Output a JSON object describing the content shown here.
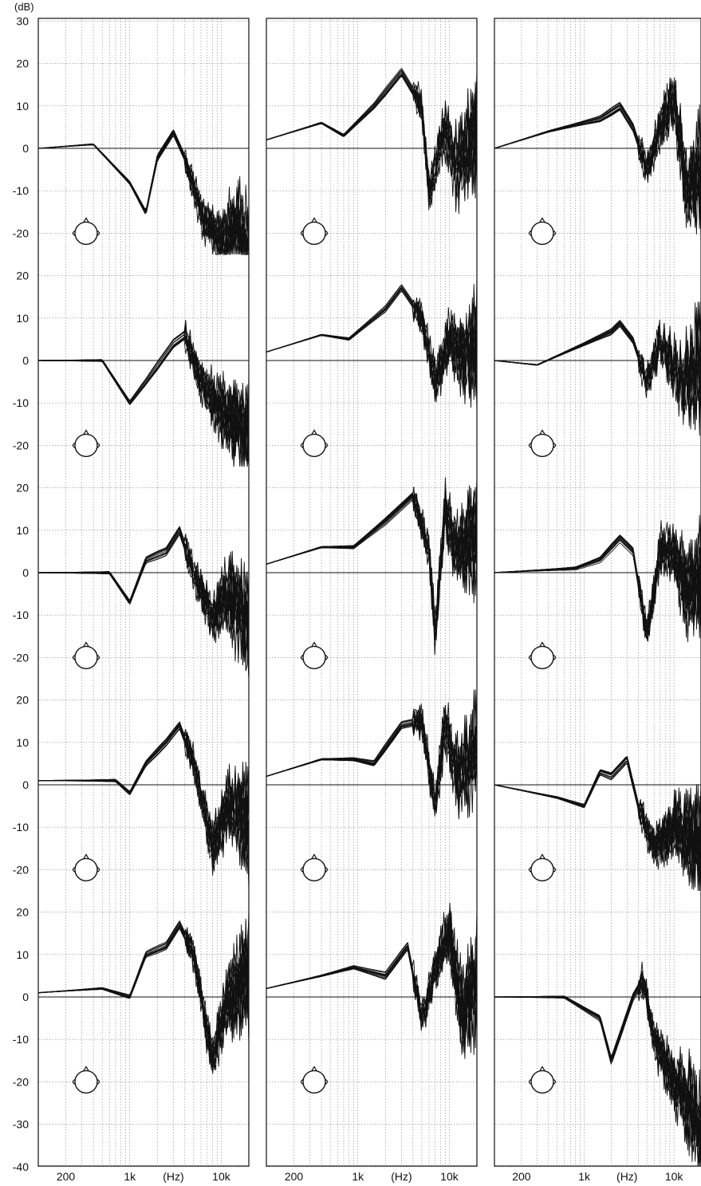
{
  "figure": {
    "unit_label": "(dB)",
    "x_axis_label": "(Hz)",
    "y_tick_labels": [
      [
        "30",
        "20",
        "10",
        "0",
        "-10",
        "-20"
      ],
      [
        "20",
        "10",
        "0",
        "-10",
        "-20"
      ],
      [
        "20",
        "10",
        "0",
        "-10",
        "-20"
      ],
      [
        "20",
        "10",
        "0",
        "-10",
        "-20"
      ],
      [
        "20",
        "10",
        "0",
        "-10",
        "-20",
        "-30",
        "-40"
      ]
    ],
    "x_tick_labels": [
      "200",
      "1k",
      "10k"
    ]
  },
  "chart_data": {
    "type": "line",
    "description_units": {
      "x": "Hz (log scale)",
      "y": "dB"
    },
    "x_range": [
      100,
      20000
    ],
    "y_ticks_per_row_step": 10,
    "x_ticks": [
      200,
      1000,
      10000
    ],
    "grid": true,
    "columns": 3,
    "rows": 5,
    "panels": [
      {
        "column": 1,
        "row": 1,
        "arrow": "from-right-front",
        "series": [
          [
            100,
            0
          ],
          [
            400,
            1
          ],
          [
            1000,
            -8
          ],
          [
            1500,
            -15
          ],
          [
            2000,
            -2
          ],
          [
            3000,
            4
          ],
          [
            4000,
            -2
          ],
          [
            6000,
            -15
          ],
          [
            10000,
            -22
          ],
          [
            15000,
            -18
          ],
          [
            20000,
            -25
          ]
        ]
      },
      {
        "column": 1,
        "row": 2,
        "arrow": "front-down-left",
        "series": [
          [
            100,
            0
          ],
          [
            500,
            0
          ],
          [
            1000,
            -10
          ],
          [
            1500,
            -5
          ],
          [
            3000,
            4
          ],
          [
            4000,
            6
          ],
          [
            6000,
            -5
          ],
          [
            10000,
            -12
          ],
          [
            15000,
            -15
          ],
          [
            20000,
            -18
          ]
        ]
      },
      {
        "column": 1,
        "row": 3,
        "arrow": "front-lower-left",
        "series": [
          [
            100,
            0
          ],
          [
            600,
            0
          ],
          [
            1000,
            -7
          ],
          [
            1500,
            3
          ],
          [
            2500,
            5
          ],
          [
            3500,
            10
          ],
          [
            5000,
            0
          ],
          [
            8000,
            -10
          ],
          [
            12000,
            -5
          ],
          [
            20000,
            -12
          ]
        ]
      },
      {
        "column": 1,
        "row": 4,
        "arrow": "front-down",
        "series": [
          [
            100,
            1
          ],
          [
            700,
            1
          ],
          [
            1000,
            -2
          ],
          [
            1500,
            5
          ],
          [
            2500,
            10
          ],
          [
            3500,
            14
          ],
          [
            5000,
            5
          ],
          [
            8000,
            -15
          ],
          [
            12000,
            -5
          ],
          [
            20000,
            -10
          ]
        ]
      },
      {
        "column": 1,
        "row": 5,
        "arrow": "front-down-tilted",
        "series": [
          [
            100,
            1
          ],
          [
            500,
            2
          ],
          [
            1000,
            0
          ],
          [
            1500,
            10
          ],
          [
            2500,
            12
          ],
          [
            3500,
            17
          ],
          [
            5000,
            10
          ],
          [
            8000,
            -15
          ],
          [
            12000,
            0
          ],
          [
            20000,
            5
          ]
        ]
      },
      {
        "column": 2,
        "row": 1,
        "arrow": "from-upper-left",
        "series": [
          [
            100,
            2
          ],
          [
            400,
            6
          ],
          [
            700,
            3
          ],
          [
            1500,
            10
          ],
          [
            3000,
            18
          ],
          [
            5000,
            10
          ],
          [
            6000,
            -10
          ],
          [
            9000,
            5
          ],
          [
            12000,
            -5
          ],
          [
            20000,
            5
          ]
        ]
      },
      {
        "column": 2,
        "row": 2,
        "arrow": "from-left-above",
        "series": [
          [
            100,
            2
          ],
          [
            400,
            6
          ],
          [
            800,
            5
          ],
          [
            2000,
            12
          ],
          [
            3000,
            17
          ],
          [
            5000,
            10
          ],
          [
            7000,
            -5
          ],
          [
            10000,
            5
          ],
          [
            15000,
            0
          ],
          [
            20000,
            5
          ]
        ]
      },
      {
        "column": 2,
        "row": 3,
        "arrow": "from-left",
        "series": [
          [
            100,
            2
          ],
          [
            400,
            6
          ],
          [
            900,
            6
          ],
          [
            2000,
            12
          ],
          [
            4000,
            18
          ],
          [
            6000,
            5
          ],
          [
            7000,
            -15
          ],
          [
            9000,
            15
          ],
          [
            12000,
            5
          ],
          [
            20000,
            8
          ]
        ]
      },
      {
        "column": 2,
        "row": 4,
        "arrow": "from-lower-left",
        "series": [
          [
            100,
            2
          ],
          [
            400,
            6
          ],
          [
            900,
            6
          ],
          [
            1500,
            5
          ],
          [
            3000,
            14
          ],
          [
            5000,
            15
          ],
          [
            7000,
            -5
          ],
          [
            9000,
            15
          ],
          [
            12000,
            2
          ],
          [
            20000,
            8
          ]
        ]
      },
      {
        "column": 2,
        "row": 5,
        "arrow": "from-lower-left-steep",
        "series": [
          [
            100,
            2
          ],
          [
            400,
            5
          ],
          [
            900,
            7
          ],
          [
            2000,
            5
          ],
          [
            3500,
            12
          ],
          [
            5000,
            -5
          ],
          [
            8000,
            10
          ],
          [
            10000,
            15
          ],
          [
            14000,
            -5
          ],
          [
            20000,
            5
          ]
        ]
      },
      {
        "column": 3,
        "row": 1,
        "arrow": "from-lower-left-up",
        "series": [
          [
            100,
            0
          ],
          [
            400,
            4
          ],
          [
            1500,
            7
          ],
          [
            2500,
            10
          ],
          [
            3500,
            5
          ],
          [
            5000,
            -5
          ],
          [
            7000,
            5
          ],
          [
            10000,
            12
          ],
          [
            14000,
            -10
          ],
          [
            20000,
            -5
          ]
        ]
      },
      {
        "column": 3,
        "row": 2,
        "arrow": "from-below",
        "series": [
          [
            100,
            0
          ],
          [
            300,
            -1
          ],
          [
            1000,
            4
          ],
          [
            2000,
            7
          ],
          [
            2500,
            9
          ],
          [
            3500,
            5
          ],
          [
            5000,
            -5
          ],
          [
            7000,
            5
          ],
          [
            12000,
            -5
          ],
          [
            20000,
            0
          ]
        ]
      },
      {
        "column": 3,
        "row": 3,
        "arrow": "from-lower-right",
        "series": [
          [
            100,
            0
          ],
          [
            800,
            1
          ],
          [
            1500,
            3
          ],
          [
            2500,
            8
          ],
          [
            3500,
            5
          ],
          [
            5000,
            -15
          ],
          [
            7000,
            5
          ],
          [
            10000,
            5
          ],
          [
            14000,
            -5
          ],
          [
            20000,
            0
          ]
        ]
      },
      {
        "column": 3,
        "row": 4,
        "arrow": "from-lower-right-far",
        "series": [
          [
            100,
            0
          ],
          [
            500,
            -3
          ],
          [
            1000,
            -5
          ],
          [
            1500,
            3
          ],
          [
            2000,
            2
          ],
          [
            3000,
            6
          ],
          [
            4000,
            -5
          ],
          [
            6000,
            -15
          ],
          [
            10000,
            -10
          ],
          [
            20000,
            -15
          ]
        ]
      },
      {
        "column": 3,
        "row": 5,
        "arrow": "from-right-below",
        "series": [
          [
            100,
            0
          ],
          [
            600,
            0
          ],
          [
            1500,
            -5
          ],
          [
            2000,
            -15
          ],
          [
            3500,
            0
          ],
          [
            4500,
            4
          ],
          [
            6000,
            -10
          ],
          [
            10000,
            -20
          ],
          [
            15000,
            -25
          ],
          [
            20000,
            -35
          ]
        ]
      }
    ]
  }
}
